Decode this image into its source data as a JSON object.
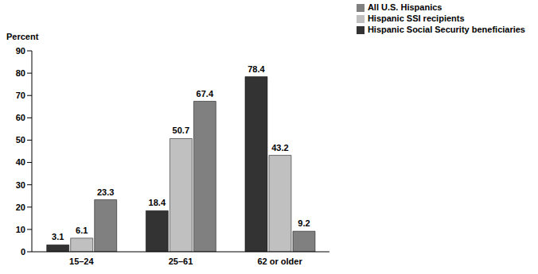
{
  "chart_data": {
    "type": "bar",
    "y_label": "Percent",
    "categories": [
      "15–24",
      "25–61",
      "62 or older"
    ],
    "series": [
      {
        "name": "Hispanic Social Security beneficiaries",
        "color": "#333333",
        "values": [
          3.1,
          18.4,
          78.4
        ]
      },
      {
        "name": "Hispanic SSI recipients",
        "color": "#c0c0c0",
        "values": [
          6.1,
          50.7,
          43.2
        ]
      },
      {
        "name": "All U.S. Hispanics",
        "color": "#808080",
        "values": [
          23.3,
          67.4,
          9.2
        ]
      }
    ],
    "ylim": [
      0,
      90
    ],
    "yticks": [
      0,
      10,
      20,
      30,
      40,
      50,
      60,
      70,
      80,
      90
    ],
    "grid": false,
    "legend": "upper right",
    "data_labels": true
  }
}
